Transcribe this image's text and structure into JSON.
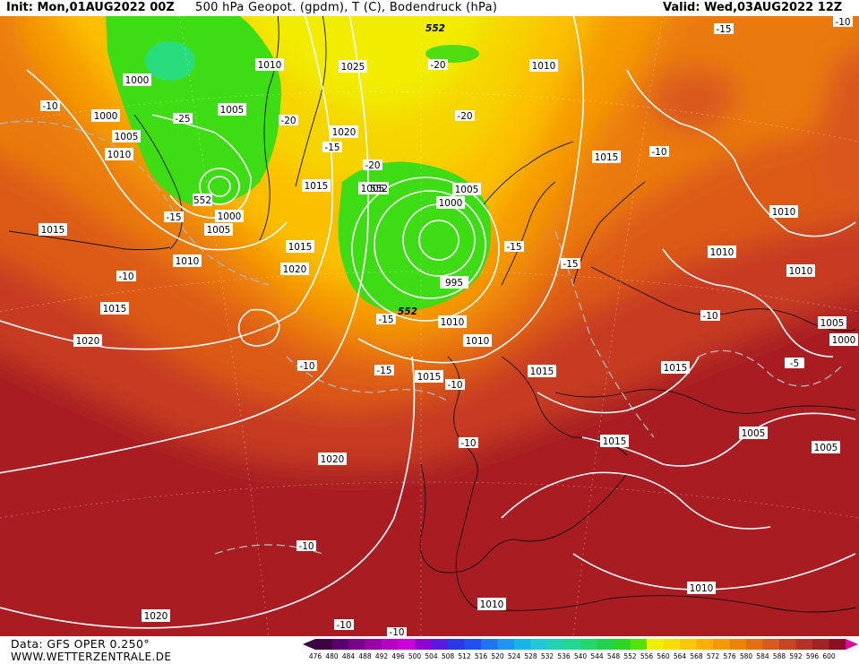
{
  "header": {
    "init": "Init: Mon,01AUG2022 00Z",
    "title": "500 hPa Geopot. (gpdm), T (C), Bodendruck (hPa)",
    "valid": "Valid: Wed,03AUG2022 12Z"
  },
  "footer": {
    "data_source": "Data: GFS OPER 0.250°",
    "website": "WWW.WETTERZENTRALE.DE"
  },
  "legend": {
    "values": [
      "476",
      "480",
      "484",
      "488",
      "492",
      "496",
      "500",
      "504",
      "508",
      "512",
      "516",
      "520",
      "524",
      "528",
      "532",
      "536",
      "540",
      "544",
      "548",
      "552",
      "556",
      "560",
      "564",
      "568",
      "572",
      "576",
      "580",
      "584",
      "588",
      "592",
      "596",
      "600"
    ],
    "colors": [
      "#3c0040",
      "#5a006e",
      "#7a008c",
      "#9a00a8",
      "#b600c4",
      "#cc00d8",
      "#9000d0",
      "#5a1ae0",
      "#2a38e8",
      "#2050f0",
      "#1f75f2",
      "#1f95f2",
      "#15b5ea",
      "#20c8d6",
      "#20d2b0",
      "#20d890",
      "#22d86a",
      "#22d24a",
      "#2ad622",
      "#50e400",
      "#eef000",
      "#f7dc00",
      "#fbc800",
      "#fbb000",
      "#f49a00",
      "#ec8400",
      "#e36f10",
      "#d85a1e",
      "#c84524",
      "#b63226",
      "#a22226",
      "#8c0e22"
    ]
  },
  "map_labels": {
    "isobars": [
      "1000",
      "1000",
      "1005",
      "1010",
      "1015",
      "1010",
      "1005",
      "1000",
      "1005",
      "1010",
      "1015",
      "1020",
      "1025",
      "1020",
      "1015",
      "1005",
      "1000",
      "995",
      "1005",
      "1010",
      "1015",
      "1010",
      "1015",
      "1020",
      "1015",
      "1010",
      "1010",
      "1005",
      "1000",
      "1015",
      "1015",
      "1010",
      "1005",
      "1005",
      "1010",
      "1020",
      "1020",
      "1015",
      "1010",
      "1015",
      "1020",
      "1010"
    ],
    "temperatures": [
      "-10",
      "-25",
      "-20",
      "-20",
      "-20",
      "-15",
      "-15",
      "-15",
      "-10",
      "-15",
      "-15",
      "-10",
      "-10",
      "-15",
      "-10",
      "-10",
      "-10",
      "-10",
      "-5",
      "-10",
      "-10",
      "-10",
      "-15",
      "-20"
    ],
    "heights": [
      "552",
      "552",
      "552",
      "552"
    ]
  }
}
